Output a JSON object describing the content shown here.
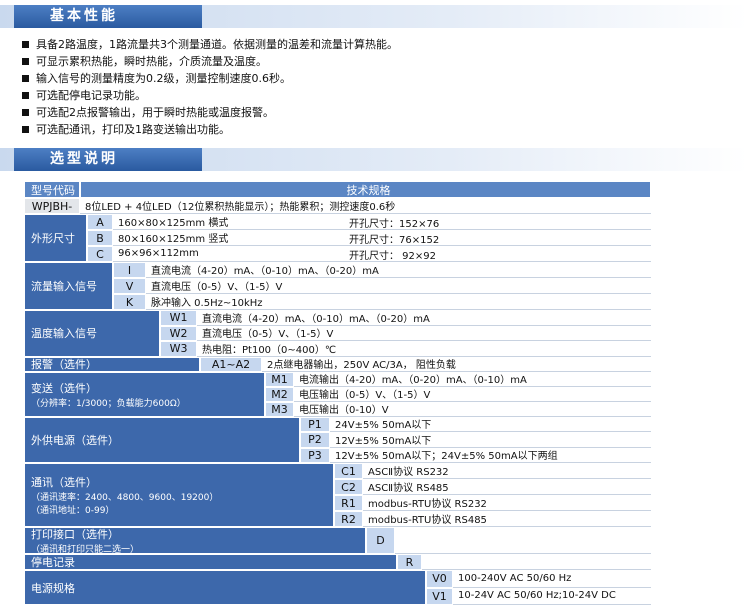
{
  "sections": [
    {
      "title": "基本性能",
      "bullets": [
        "具备2路温度，1路流量共3个测量通道。依据测量的温差和流量计算热能。",
        "可显示累积热能，瞬时热能，介质流量及温度。",
        "输入信号的测量精度为0.2级，测量控制速度0.6秒。",
        "可选配停电记录功能。",
        "可选配2点报警输出，用于瞬时热能或温度报警。",
        "可选配通讯，打印及1路变送输出功能。"
      ]
    },
    {
      "title": "选型说明"
    }
  ],
  "table": {
    "header": [
      "型号代码",
      "技术规格"
    ],
    "model": [
      "WPJBH-",
      "8位LED + 4位LED（12位累积热能显示）；热能累积；测控速度0.6秒"
    ],
    "groups": [
      {
        "label": "外形尺寸",
        "rows": [
          {
            "code": "A",
            "text": "160×80×125mm 横式",
            "extra": "开孔尺寸：152×76"
          },
          {
            "code": "B",
            "text": "80×160×125mm 竖式",
            "extra": "开孔尺寸：76×152"
          },
          {
            "code": "C",
            "text": "96×96×112mm",
            "extra": "开孔尺寸： 92×92"
          }
        ]
      },
      {
        "label": "流量输入信号",
        "rows": [
          {
            "code": "I",
            "text": "直流电流（4-20）mA、（0-10）mA、（0-20）mA"
          },
          {
            "code": "V",
            "text": "直流电压（0-5）V、（1-5）V"
          },
          {
            "code": "K",
            "text": "脉冲输入 0.5Hz~10kHz"
          }
        ]
      },
      {
        "label": "温度输入信号",
        "rows": [
          {
            "code": "W1",
            "text": "直流电流（4-20）mA、（0-10）mA、（0-20）mA"
          },
          {
            "code": "W2",
            "text": "直流电压（0-5）V、（1-5）V"
          },
          {
            "code": "W3",
            "text": "热电阻：Pt100（0~400）℃"
          }
        ]
      },
      {
        "label": "报警（选件）",
        "rows": [
          {
            "code": "A1~A2",
            "text": "2点继电器输出，250V AC/3A， 阻性负载"
          }
        ]
      },
      {
        "label": "变送（选件）",
        "notes": [
          "（分辨率：1/3000；负载能力600Ω）"
        ],
        "rows": [
          {
            "code": "M1",
            "text": "电流输出（4-20）mA、（0-20）mA、（0-10）mA"
          },
          {
            "code": "M2",
            "text": "电压输出（0-5）V、（1-5）V"
          },
          {
            "code": "M3",
            "text": "电压输出（0-10）V"
          }
        ]
      },
      {
        "label": "外供电源（选件）",
        "rows": [
          {
            "code": "P1",
            "text": "24V±5%  50mA以下"
          },
          {
            "code": "P2",
            "text": "12V±5%  50mA以下"
          },
          {
            "code": "P3",
            "text": "12V±5%  50mA以下；24V±5%  50mA以下两组"
          }
        ]
      },
      {
        "label": "通讯（选件）",
        "notes": [
          "（通讯速率：2400、4800、9600、19200）",
          "（通讯地址：0-99）"
        ],
        "rows": [
          {
            "code": "C1",
            "text": "ASCⅡ协议 RS232"
          },
          {
            "code": "C2",
            "text": "ASCⅡ协议 RS485"
          },
          {
            "code": "R1",
            "text": "modbus-RTU协议 RS232"
          },
          {
            "code": "R2",
            "text": "modbus-RTU协议 RS485"
          }
        ]
      },
      {
        "label": "打印接口（选件）",
        "notes": [
          "（通讯和打印只能二选一）"
        ],
        "rows": [
          {
            "code": "D"
          }
        ]
      },
      {
        "label": "停电记录",
        "rows": [
          {
            "code": "R"
          }
        ]
      },
      {
        "label": "电源规格",
        "rows": [
          {
            "code": "V0",
            "text": "100-240V AC 50/60 Hz"
          },
          {
            "code": "V1",
            "text": "10-24V AC 50/60 Hz;10-24V DC"
          }
        ]
      }
    ]
  }
}
